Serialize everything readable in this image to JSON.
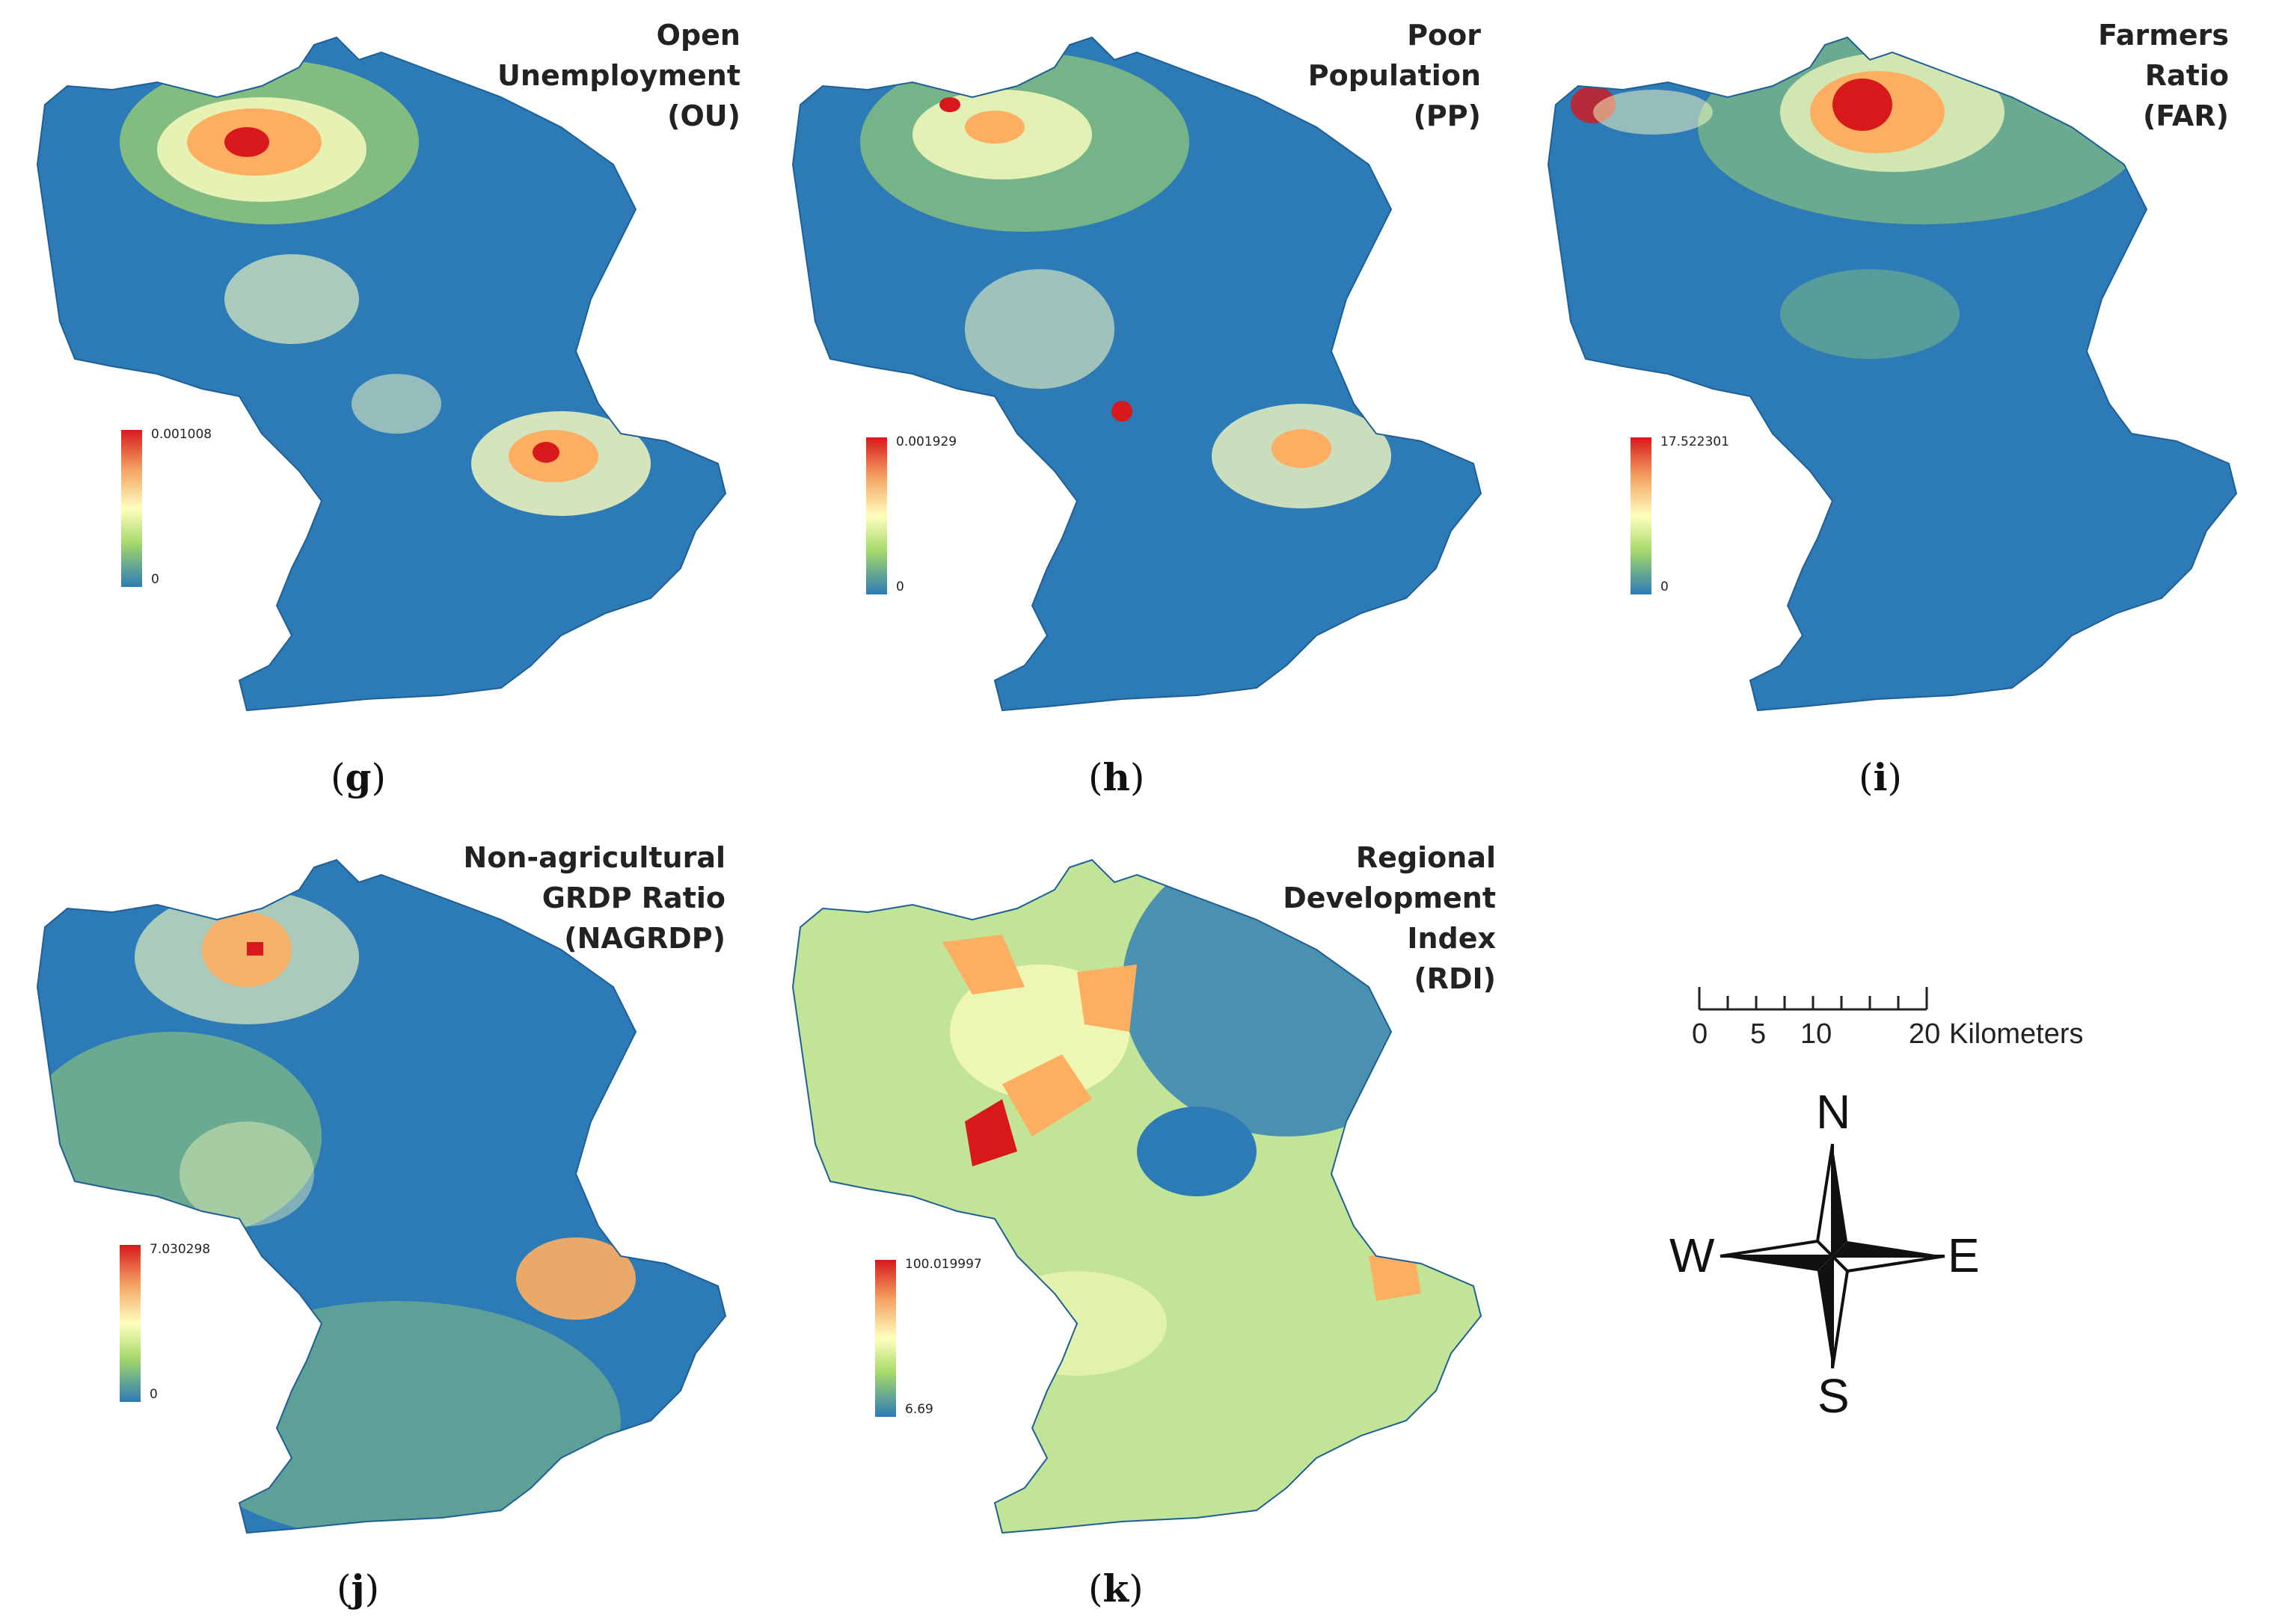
{
  "maps": [
    {
      "id": "g",
      "title_lines": [
        "Open",
        "Unemployment",
        "(OU)"
      ],
      "legend_max": "0.001008",
      "legend_min": "0",
      "caption_open": "(",
      "caption_letter": "g",
      "caption_close": ")",
      "palette": "ou"
    },
    {
      "id": "h",
      "title_lines": [
        "Poor",
        "Population",
        "(PP)"
      ],
      "legend_max": "0.001929",
      "legend_min": "0",
      "caption_open": "(",
      "caption_letter": "h",
      "caption_close": ")",
      "palette": "pp"
    },
    {
      "id": "i",
      "title_lines": [
        "Farmers",
        "Ratio",
        "(FAR)"
      ],
      "legend_max": "17.522301",
      "legend_min": "0",
      "caption_open": "(",
      "caption_letter": "i",
      "caption_close": ")",
      "palette": "far"
    },
    {
      "id": "j",
      "title_lines": [
        "Non-agricultural",
        "GRDP Ratio",
        "(NAGRDP)"
      ],
      "legend_max": "7.030298",
      "legend_min": "0",
      "caption_open": "(",
      "caption_letter": "j",
      "caption_close": ")",
      "palette": "nagrdp"
    },
    {
      "id": "k",
      "title_lines": [
        "Regional",
        "Development",
        "Index",
        "(RDI)"
      ],
      "legend_max": "100.019997",
      "legend_min": "6.69",
      "caption_open": "(",
      "caption_letter": "k",
      "caption_close": ")",
      "palette": "rdi"
    }
  ],
  "scale_bar": {
    "ticks": [
      "0",
      "5",
      "10",
      "20"
    ],
    "unit": "Kilometers"
  },
  "compass": {
    "north": "N",
    "south": "S",
    "east": "E",
    "west": "W"
  },
  "colors": {
    "low": "#2c7bb6",
    "mid_low": "#a6d96a",
    "mid": "#ffffbf",
    "mid_high": "#fdae61",
    "high": "#d7191c"
  }
}
